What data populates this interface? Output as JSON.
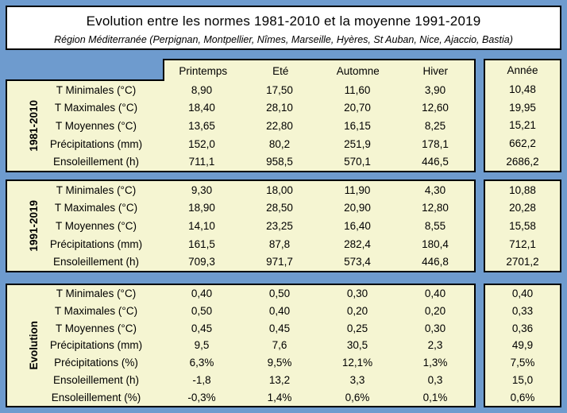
{
  "colors": {
    "page_background": "#6e9bce",
    "cell_background": "#f5f5d2",
    "border": "#000000",
    "title_background": "#ffffff",
    "text": "#000000"
  },
  "chart_data": {
    "type": "table",
    "title": "Evolution entre les normes 1981-2010 et la moyenne 1991-2019",
    "subtitle": "Région Méditerranée (Perpignan, Montpellier, Nîmes, Marseille, Hyères, St Auban, Nice, Ajaccio, Bastia)",
    "columns": [
      "Printemps",
      "Eté",
      "Automne",
      "Hiver"
    ],
    "year_column": "Année",
    "blocks": [
      {
        "label": "1981-2010",
        "rows": [
          {
            "label": "T Minimales (°C)",
            "values": [
              "8,90",
              "17,50",
              "11,60",
              "3,90"
            ],
            "year": "10,48"
          },
          {
            "label": "T Maximales (°C)",
            "values": [
              "18,40",
              "28,10",
              "20,70",
              "12,60"
            ],
            "year": "19,95"
          },
          {
            "label": "T Moyennes (°C)",
            "values": [
              "13,65",
              "22,80",
              "16,15",
              "8,25"
            ],
            "year": "15,21"
          },
          {
            "label": "Précipitations (mm)",
            "values": [
              "152,0",
              "80,2",
              "251,9",
              "178,1"
            ],
            "year": "662,2"
          },
          {
            "label": "Ensoleillement (h)",
            "values": [
              "711,1",
              "958,5",
              "570,1",
              "446,5"
            ],
            "year": "2686,2"
          }
        ]
      },
      {
        "label": "1991-2019",
        "rows": [
          {
            "label": "T Minimales (°C)",
            "values": [
              "9,30",
              "18,00",
              "11,90",
              "4,30"
            ],
            "year": "10,88"
          },
          {
            "label": "T Maximales (°C)",
            "values": [
              "18,90",
              "28,50",
              "20,90",
              "12,80"
            ],
            "year": "20,28"
          },
          {
            "label": "T Moyennes (°C)",
            "values": [
              "14,10",
              "23,25",
              "16,40",
              "8,55"
            ],
            "year": "15,58"
          },
          {
            "label": "Précipitations (mm)",
            "values": [
              "161,5",
              "87,8",
              "282,4",
              "180,4"
            ],
            "year": "712,1"
          },
          {
            "label": "Ensoleillement (h)",
            "values": [
              "709,3",
              "971,7",
              "573,4",
              "446,8"
            ],
            "year": "2701,2"
          }
        ]
      },
      {
        "label": "Evolution",
        "rows": [
          {
            "label": "T Minimales (°C)",
            "values": [
              "0,40",
              "0,50",
              "0,30",
              "0,40"
            ],
            "year": "0,40"
          },
          {
            "label": "T Maximales (°C)",
            "values": [
              "0,50",
              "0,40",
              "0,20",
              "0,20"
            ],
            "year": "0,33"
          },
          {
            "label": "T Moyennes (°C)",
            "values": [
              "0,45",
              "0,45",
              "0,25",
              "0,30"
            ],
            "year": "0,36"
          },
          {
            "label": "Précipitations (mm)",
            "values": [
              "9,5",
              "7,6",
              "30,5",
              "2,3"
            ],
            "year": "49,9"
          },
          {
            "label": "Précipitations (%)",
            "values": [
              "6,3%",
              "9,5%",
              "12,1%",
              "1,3%"
            ],
            "year": "7,5%"
          },
          {
            "label": "Ensoleillement (h)",
            "values": [
              "-1,8",
              "13,2",
              "3,3",
              "0,3"
            ],
            "year": "15,0"
          },
          {
            "label": "Ensoleillement (%)",
            "values": [
              "-0,3%",
              "1,4%",
              "0,6%",
              "0,1%"
            ],
            "year": "0,6%"
          }
        ]
      }
    ]
  }
}
